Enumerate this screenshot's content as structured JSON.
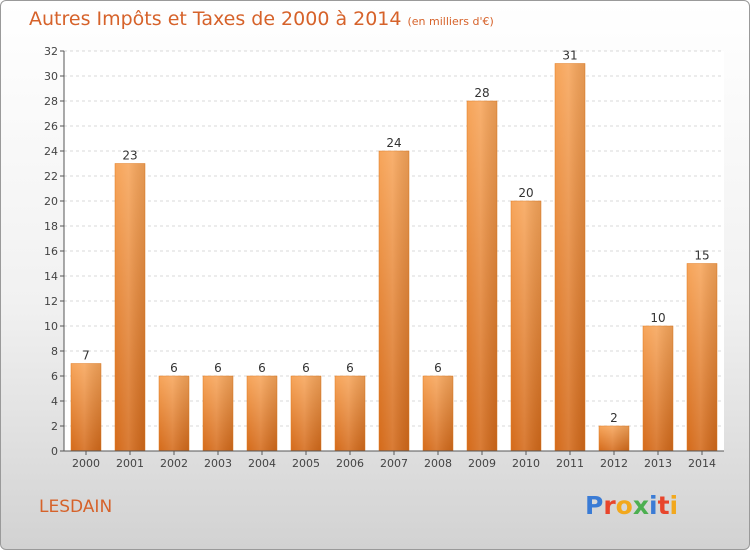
{
  "header": {
    "title": "Autres Impôts et Taxes de 2000 à 2014",
    "subtitle": "(en milliers d'€)"
  },
  "footer": {
    "place": "LESDAIN",
    "logo": "Proxiti",
    "logo_letters": [
      {
        "ch": "P",
        "color": "#3a7bd5"
      },
      {
        "ch": "r",
        "color": "#e8452c"
      },
      {
        "ch": "o",
        "color": "#f2a81d"
      },
      {
        "ch": "x",
        "color": "#4caf50"
      },
      {
        "ch": "i",
        "color": "#3a7bd5"
      },
      {
        "ch": "t",
        "color": "#e8452c"
      },
      {
        "ch": "i",
        "color": "#f2a81d"
      }
    ]
  },
  "chart_data": {
    "type": "bar",
    "title": "Autres Impôts et Taxes de 2000 à 2014",
    "xlabel": "",
    "ylabel": "",
    "categories": [
      "2000",
      "2001",
      "2002",
      "2003",
      "2004",
      "2005",
      "2006",
      "2007",
      "2008",
      "2009",
      "2010",
      "2011",
      "2012",
      "2013",
      "2014"
    ],
    "values": [
      7,
      23,
      6,
      6,
      6,
      6,
      6,
      24,
      6,
      28,
      20,
      31,
      2,
      10,
      15
    ],
    "ylim": [
      0,
      32
    ],
    "yticks": [
      0,
      2,
      4,
      6,
      8,
      10,
      12,
      14,
      16,
      18,
      20,
      22,
      24,
      26,
      28,
      30,
      32
    ],
    "grid": "horizontal",
    "bar_color": "#f08a30",
    "legend": "none"
  }
}
